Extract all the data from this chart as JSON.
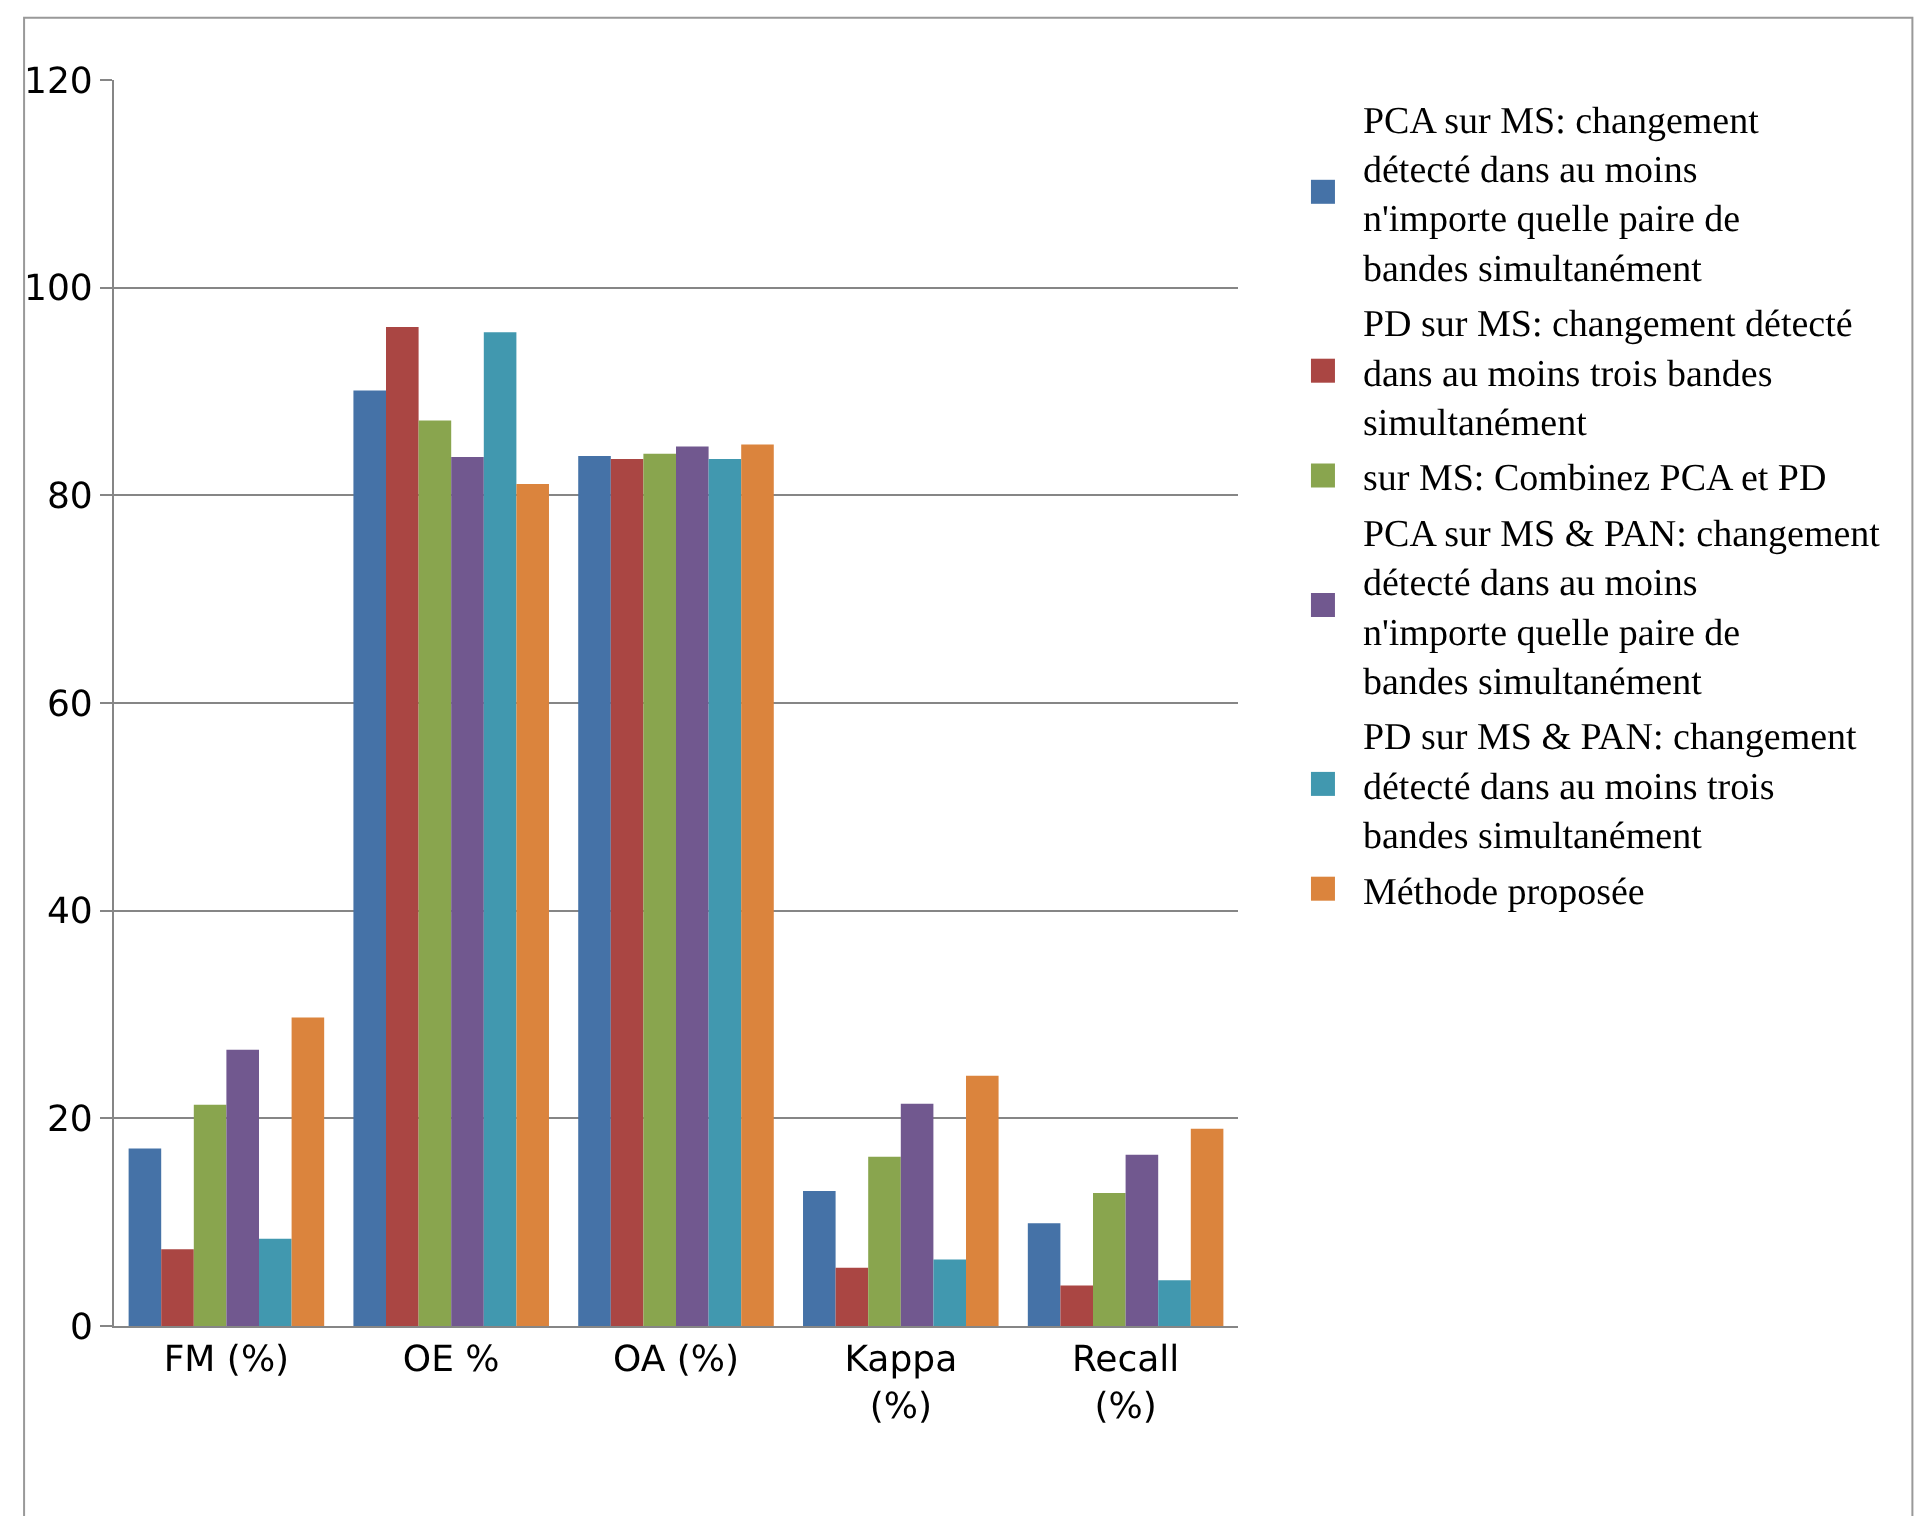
{
  "chart_data": {
    "type": "bar",
    "categories": [
      "FM (%)",
      "OE %",
      "OA (%)",
      "Kappa (%)",
      "Recall (%)"
    ],
    "series": [
      {
        "name": "PCA sur MS: changement détecté dans au moins n'importe quelle paire de bandes simultanément",
        "color": "#4572a7",
        "values": [
          17.1,
          90.1,
          83.8,
          13.0,
          9.9
        ]
      },
      {
        "name": "PD sur MS: changement détecté dans au moins trois bandes simultanément",
        "color": "#aa4643",
        "values": [
          7.4,
          96.2,
          83.5,
          5.6,
          3.9
        ]
      },
      {
        "name": "sur MS: Combinez PCA et PD",
        "color": "#89a54e",
        "values": [
          21.3,
          87.2,
          84.0,
          16.3,
          12.8
        ]
      },
      {
        "name": "PCA sur MS & PAN: changement détecté dans au moins n'importe quelle paire de bandes simultanément",
        "color": "#71588f",
        "values": [
          26.6,
          83.7,
          84.7,
          21.4,
          16.5
        ]
      },
      {
        "name": "PD sur MS & PAN: changement détecté dans au moins trois bandes simultanément",
        "color": "#4198af",
        "values": [
          8.4,
          95.7,
          83.5,
          6.4,
          4.4
        ]
      },
      {
        "name": "Méthode proposée",
        "color": "#db843d",
        "values": [
          29.7,
          81.1,
          84.9,
          24.1,
          19.0
        ]
      }
    ],
    "ylim": [
      0,
      120
    ],
    "yticks": [
      0,
      20,
      40,
      60,
      80,
      100,
      120
    ],
    "grid": "y",
    "legend": "right"
  }
}
